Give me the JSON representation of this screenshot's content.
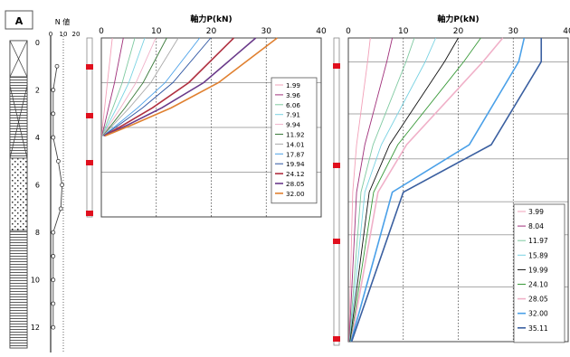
{
  "boring_panel": {
    "label": "A",
    "n_value_title": "N 値",
    "n_ticks": [
      "0",
      "10",
      "20"
    ],
    "depth_ticks": [
      "0",
      "2",
      "4",
      "6",
      "8",
      "10",
      "12"
    ],
    "n_profile": [
      {
        "depth": 1.0,
        "n": 5
      },
      {
        "depth": 2.0,
        "n": 2
      },
      {
        "depth": 3.0,
        "n": 2
      },
      {
        "depth": 4.0,
        "n": 2
      },
      {
        "depth": 5.0,
        "n": 6
      },
      {
        "depth": 6.0,
        "n": 9
      },
      {
        "depth": 7.0,
        "n": 8
      },
      {
        "depth": 8.0,
        "n": 2
      },
      {
        "depth": 9.0,
        "n": 2
      },
      {
        "depth": 10.0,
        "n": 2
      },
      {
        "depth": 11.0,
        "n": 2
      },
      {
        "depth": 12.0,
        "n": 2
      }
    ]
  },
  "chart_data": [
    {
      "type": "line",
      "title": "軸力P(kN)",
      "xlim": [
        0,
        40
      ],
      "x_ticks": [
        "0",
        "10",
        "20",
        "30",
        "40"
      ],
      "ylim": [
        0,
        12.8
      ],
      "depth_breaks": [
        0,
        3.2,
        5.0,
        6.2,
        7.0
      ],
      "load_steps": [
        {
          "label": "1.99",
          "color": "#f2a0b8",
          "values": [
            2.0,
            1.1,
            0.6,
            0.25,
            0.05
          ]
        },
        {
          "label": "3.96",
          "color": "#a0307a",
          "values": [
            4.0,
            2.4,
            1.3,
            0.6,
            0.1
          ]
        },
        {
          "label": "6.06",
          "color": "#7ec9a0",
          "values": [
            6.1,
            3.8,
            2.1,
            0.9,
            0.15
          ]
        },
        {
          "label": "7.91",
          "color": "#78d2e2",
          "values": [
            7.9,
            5.0,
            2.8,
            1.2,
            0.2
          ]
        },
        {
          "label": "9.94",
          "color": "#f0b0c8",
          "values": [
            9.9,
            6.3,
            3.5,
            1.5,
            0.2
          ]
        },
        {
          "label": "11.92",
          "color": "#3a7a3a",
          "values": [
            11.9,
            7.6,
            4.3,
            1.9,
            0.25
          ]
        },
        {
          "label": "14.01",
          "color": "#aaaaaa",
          "values": [
            14.0,
            9.0,
            5.1,
            2.2,
            0.3
          ]
        },
        {
          "label": "17.87",
          "color": "#4aa0e8",
          "values": [
            17.9,
            11.6,
            6.6,
            2.9,
            0.35
          ]
        },
        {
          "label": "19.94",
          "color": "#2a52a0",
          "values": [
            19.9,
            13.0,
            7.5,
            3.3,
            0.4
          ]
        },
        {
          "label": "24.12",
          "color": "#b03040",
          "values": [
            24.1,
            15.9,
            9.3,
            4.1,
            0.5
          ]
        },
        {
          "label": "28.05",
          "color": "#6a3a8a",
          "values": [
            28.1,
            18.6,
            11.0,
            4.9,
            0.6
          ]
        },
        {
          "label": "32.00",
          "color": "#e08030",
          "values": [
            32.0,
            21.3,
            12.7,
            5.7,
            0.7
          ]
        }
      ]
    },
    {
      "type": "line",
      "title": "軸力P(kN)",
      "xlim": [
        0,
        40
      ],
      "x_ticks": [
        "0",
        "10",
        "20",
        "30",
        "40"
      ],
      "ylim": [
        0,
        12.8
      ],
      "depth_breaks": [
        0,
        1.0,
        4.5,
        6.5,
        12.8
      ],
      "load_steps": [
        {
          "label": "3.99",
          "color": "#f2a0b8",
          "values": [
            4.0,
            3.5,
            1.5,
            0.8,
            0.1
          ]
        },
        {
          "label": "8.04",
          "color": "#a0307a",
          "values": [
            8.0,
            7.0,
            3.0,
            1.5,
            0.15
          ]
        },
        {
          "label": "11.97",
          "color": "#7ec9a0",
          "values": [
            12.0,
            10.5,
            4.5,
            2.3,
            0.2
          ]
        },
        {
          "label": "15.89",
          "color": "#78d2e2",
          "values": [
            15.9,
            14.0,
            6.0,
            3.0,
            0.25
          ]
        },
        {
          "label": "19.99",
          "color": "#111111",
          "values": [
            20.0,
            17.5,
            7.5,
            3.8,
            0.3
          ]
        },
        {
          "label": "24.10",
          "color": "#3a9a3a",
          "values": [
            24.1,
            21.0,
            9.0,
            4.6,
            0.4
          ]
        },
        {
          "label": "28.05",
          "color": "#f0b0c8",
          "values": [
            28.1,
            24.5,
            10.6,
            5.4,
            0.5
          ]
        },
        {
          "label": "32.00",
          "color": "#4aa0e8",
          "values": [
            32.0,
            31.0,
            22.0,
            8.0,
            0.5
          ]
        },
        {
          "label": "35.11",
          "color": "#3a5fa0",
          "values": [
            35.1,
            35.1,
            26.0,
            10.0,
            0.6
          ]
        }
      ]
    }
  ]
}
